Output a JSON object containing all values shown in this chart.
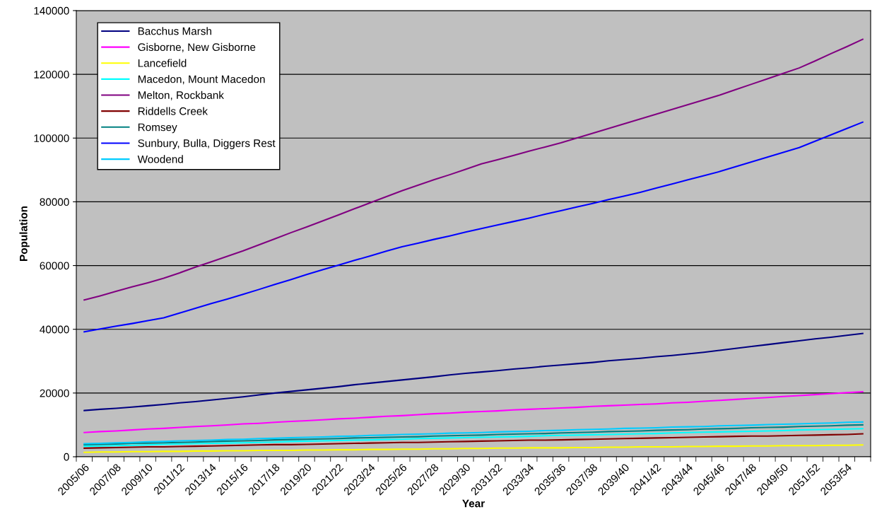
{
  "chart_data": {
    "type": "line",
    "xlabel": "Year",
    "ylabel": "Population",
    "categories": [
      "2005/06",
      null,
      "2007/08",
      null,
      "2009/10",
      null,
      "2011/12",
      null,
      "2013/14",
      null,
      "2015/16",
      null,
      "2017/18",
      null,
      "2019/20",
      null,
      "2021/22",
      null,
      "2023/24",
      null,
      "2025/26",
      null,
      "2027/28",
      null,
      "2029/30",
      null,
      "2031/32",
      null,
      "2033/34",
      null,
      "2035/36",
      null,
      "2037/38",
      null,
      "2039/40",
      null,
      "2041/42",
      null,
      "2043/44",
      null,
      "2045/46",
      null,
      "2047/48",
      null,
      "2049/50",
      null,
      "2051/52",
      null,
      "2053/54",
      null
    ],
    "ylim": [
      0,
      140000
    ],
    "yticks": [
      0,
      20000,
      40000,
      60000,
      80000,
      100000,
      120000,
      140000
    ],
    "grid": "y",
    "legend": "top left",
    "marker": "none",
    "series": [
      {
        "name": "Bacchus Marsh",
        "color": "#000080",
        "values": [
          14500,
          14900,
          15200,
          15600,
          16000,
          16400,
          16900,
          17300,
          17800,
          18300,
          18800,
          19400,
          20000,
          20500,
          21000,
          21500,
          22000,
          22600,
          23100,
          23600,
          24100,
          24600,
          25100,
          25700,
          26200,
          26600,
          27000,
          27500,
          27900,
          28400,
          28800,
          29200,
          29600,
          30100,
          30500,
          30900,
          31400,
          31800,
          32300,
          32800,
          33400,
          34000,
          34600,
          35200,
          35800,
          36400,
          37000,
          37500,
          38100,
          38700
        ]
      },
      {
        "name": "Gisborne, New Gisborne",
        "color": "#ff00ff",
        "values": [
          7600,
          7900,
          8100,
          8400,
          8700,
          8900,
          9200,
          9500,
          9700,
          10000,
          10300,
          10500,
          10800,
          11100,
          11300,
          11600,
          11900,
          12100,
          12400,
          12700,
          12900,
          13200,
          13500,
          13700,
          14000,
          14200,
          14400,
          14700,
          14900,
          15100,
          15300,
          15500,
          15800,
          16000,
          16200,
          16400,
          16600,
          16900,
          17100,
          17400,
          17700,
          18000,
          18300,
          18600,
          18900,
          19200,
          19500,
          19800,
          20100,
          20400
        ]
      },
      {
        "name": "Lancefield",
        "color": "#ffff00",
        "values": [
          1400,
          1500,
          1500,
          1600,
          1600,
          1700,
          1700,
          1800,
          1800,
          1900,
          1900,
          2000,
          2000,
          2000,
          2100,
          2100,
          2200,
          2200,
          2300,
          2300,
          2400,
          2400,
          2500,
          2500,
          2600,
          2600,
          2700,
          2700,
          2800,
          2800,
          2800,
          2900,
          2900,
          3000,
          3000,
          3100,
          3100,
          3100,
          3200,
          3200,
          3300,
          3300,
          3400,
          3400,
          3500,
          3500,
          3500,
          3600,
          3600,
          3700
        ]
      },
      {
        "name": "Macedon, Mount Macedon",
        "color": "#00ffff",
        "values": [
          3300,
          3400,
          3500,
          3600,
          3700,
          3900,
          4000,
          4100,
          4200,
          4300,
          4400,
          4500,
          4600,
          4800,
          4900,
          5000,
          5100,
          5200,
          5300,
          5400,
          5500,
          5700,
          5800,
          5900,
          6000,
          6100,
          6200,
          6300,
          6400,
          6600,
          6700,
          6800,
          6900,
          7000,
          7100,
          7200,
          7300,
          7500,
          7600,
          7700,
          7800,
          7900,
          8000,
          8100,
          8200,
          8400,
          8500,
          8600,
          8700,
          8800
        ]
      },
      {
        "name": "Melton, Rockbank",
        "color": "#800080",
        "values": [
          49200,
          50500,
          51900,
          53300,
          54600,
          56000,
          57700,
          59500,
          61200,
          62900,
          64600,
          66500,
          68400,
          70300,
          72100,
          74000,
          75900,
          77800,
          79700,
          81600,
          83500,
          85200,
          86900,
          88500,
          90200,
          91900,
          93200,
          94500,
          95900,
          97200,
          98500,
          100000,
          101500,
          103000,
          104500,
          106000,
          107500,
          109000,
          110500,
          112000,
          113500,
          115200,
          116900,
          118600,
          120300,
          122000,
          124200,
          126500,
          128700,
          131000
        ]
      },
      {
        "name": "Riddells Creek",
        "color": "#800000",
        "values": [
          2700,
          2800,
          2900,
          3000,
          3100,
          3100,
          3200,
          3300,
          3400,
          3500,
          3600,
          3700,
          3800,
          3800,
          3900,
          4000,
          4100,
          4200,
          4300,
          4400,
          4500,
          4500,
          4600,
          4700,
          4800,
          4900,
          5000,
          5100,
          5200,
          5200,
          5300,
          5400,
          5500,
          5600,
          5700,
          5800,
          5900,
          6000,
          6100,
          6200,
          6300,
          6400,
          6500,
          6500,
          6600,
          6700,
          6800,
          6900,
          7000,
          7200
        ]
      },
      {
        "name": "Romsey",
        "color": "#008080",
        "values": [
          3800,
          3900,
          4000,
          4200,
          4300,
          4400,
          4500,
          4600,
          4800,
          4900,
          5000,
          5100,
          5300,
          5400,
          5500,
          5600,
          5700,
          5900,
          6000,
          6100,
          6200,
          6300,
          6500,
          6600,
          6700,
          6800,
          7000,
          7100,
          7200,
          7300,
          7500,
          7600,
          7700,
          7900,
          8000,
          8100,
          8300,
          8400,
          8500,
          8700,
          8800,
          8900,
          9100,
          9200,
          9300,
          9500,
          9600,
          9700,
          9900,
          10000
        ]
      },
      {
        "name": "Sunbury, Bulla, Diggers Rest",
        "color": "#0000ff",
        "values": [
          39200,
          40100,
          41000,
          41800,
          42700,
          43600,
          45100,
          46600,
          48100,
          49500,
          51000,
          52500,
          54100,
          55600,
          57200,
          58700,
          60100,
          61600,
          63000,
          64500,
          65900,
          67000,
          68200,
          69300,
          70500,
          71600,
          72700,
          73800,
          74900,
          76100,
          77200,
          78400,
          79500,
          80700,
          81800,
          83000,
          84300,
          85600,
          86900,
          88200,
          89500,
          91000,
          92500,
          94000,
          95500,
          97000,
          99000,
          101000,
          103000,
          105000
        ]
      },
      {
        "name": "Woodend",
        "color": "#00ccff",
        "values": [
          4100,
          4200,
          4400,
          4500,
          4700,
          4800,
          5000,
          5100,
          5200,
          5400,
          5500,
          5700,
          5800,
          6000,
          6100,
          6200,
          6400,
          6500,
          6700,
          6800,
          7000,
          7100,
          7200,
          7400,
          7500,
          7600,
          7800,
          7900,
          8000,
          8200,
          8300,
          8500,
          8600,
          8700,
          8900,
          9000,
          9100,
          9300,
          9400,
          9500,
          9700,
          9800,
          9900,
          10100,
          10200,
          10300,
          10500,
          10600,
          10800,
          10900
        ]
      }
    ]
  }
}
